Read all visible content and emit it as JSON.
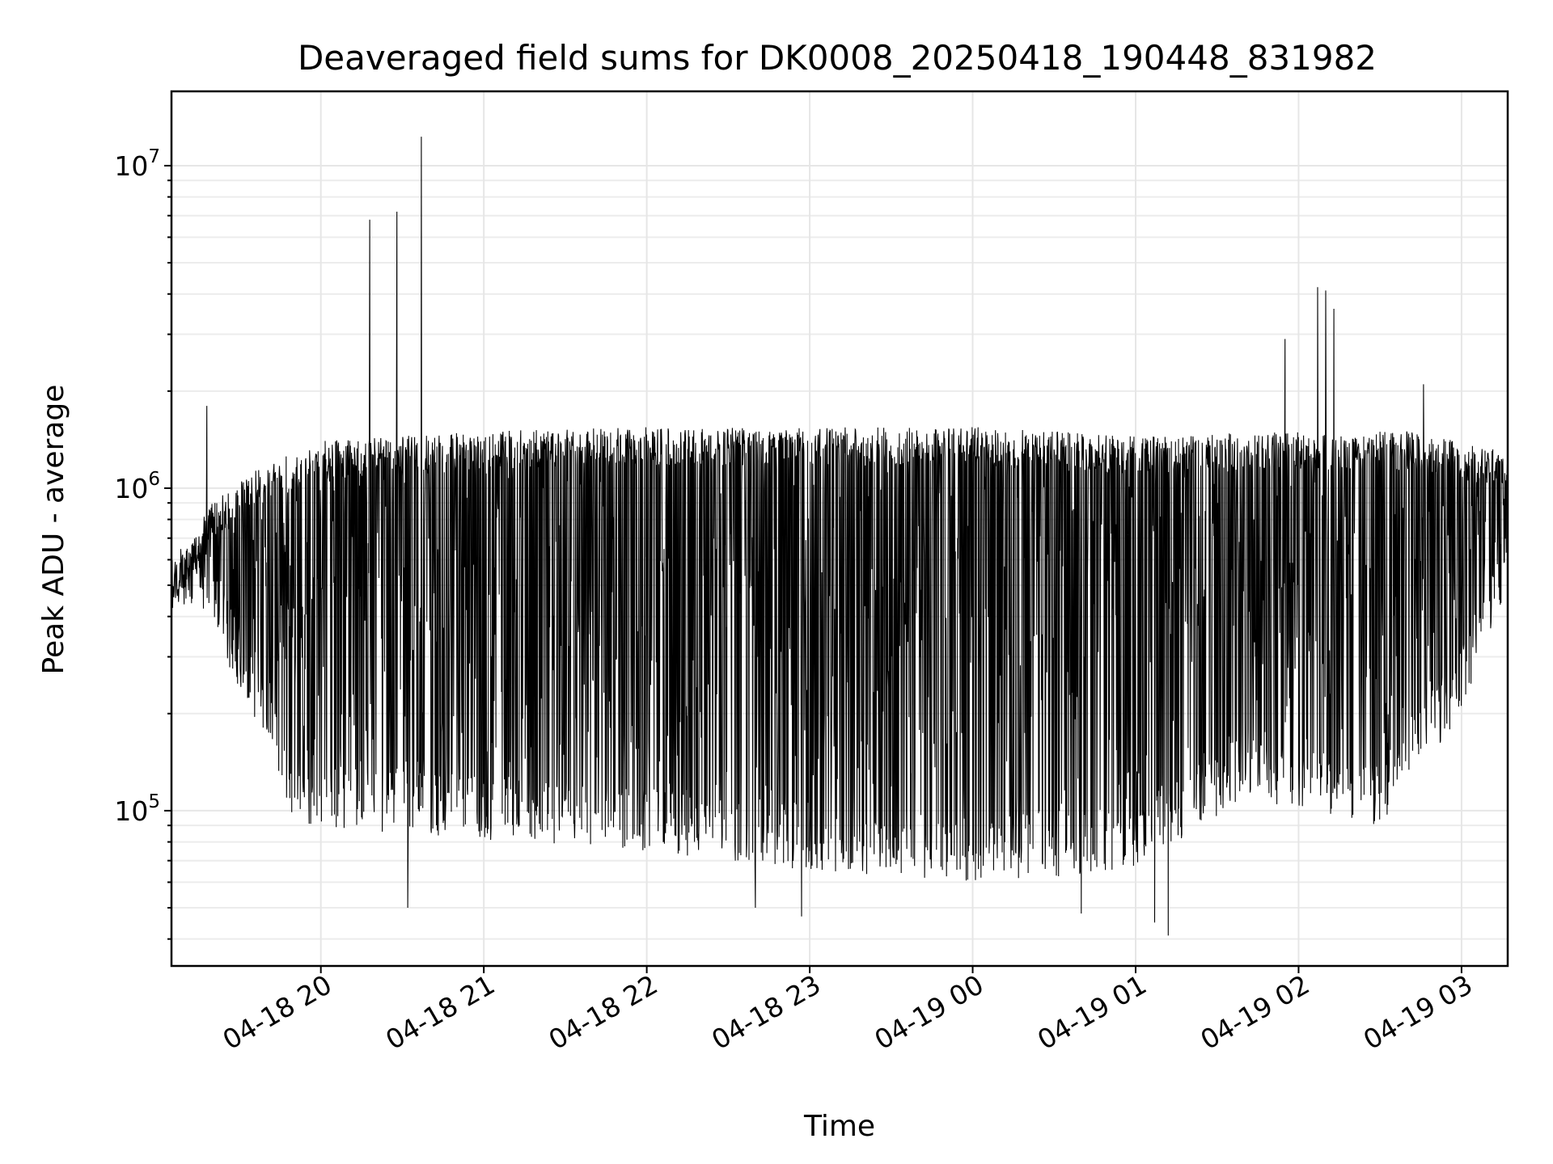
{
  "chart_data": {
    "type": "line",
    "title": "Deaveraged field sums for DK0008_20250418_190448_831982",
    "xlabel": "Time",
    "ylabel": "Peak ADU - average",
    "yscale": "log",
    "xlim": [
      "2025-04-18T19:05:00",
      "2025-04-19T03:17:00"
    ],
    "ylim": [
      33000,
      17000000
    ],
    "grid": true,
    "line_color": "#000000",
    "x_ticks": [
      {
        "value": "2025-04-18T20:00:00",
        "label": "04-18 20"
      },
      {
        "value": "2025-04-18T21:00:00",
        "label": "04-18 21"
      },
      {
        "value": "2025-04-18T22:00:00",
        "label": "04-18 22"
      },
      {
        "value": "2025-04-18T23:00:00",
        "label": "04-18 23"
      },
      {
        "value": "2025-04-19T00:00:00",
        "label": "04-19 00"
      },
      {
        "value": "2025-04-19T01:00:00",
        "label": "04-19 01"
      },
      {
        "value": "2025-04-19T02:00:00",
        "label": "04-19 02"
      },
      {
        "value": "2025-04-19T03:00:00",
        "label": "04-19 03"
      }
    ],
    "y_ticks": [
      {
        "value": 100000,
        "base": "10",
        "exp": "5"
      },
      {
        "value": 1000000,
        "base": "10",
        "exp": "6"
      },
      {
        "value": 10000000,
        "base": "10",
        "exp": "7"
      }
    ],
    "series": [
      {
        "style": "dense oscillating signal between an upper envelope and a lower envelope",
        "upper_envelope": [
          {
            "x": "2025-04-18T19:05:00",
            "y": 550000
          },
          {
            "x": "2025-04-18T19:20:00",
            "y": 900000
          },
          {
            "x": "2025-04-18T19:40:00",
            "y": 1200000
          },
          {
            "x": "2025-04-18T20:00:00",
            "y": 1400000
          },
          {
            "x": "2025-04-18T20:30:00",
            "y": 1450000
          },
          {
            "x": "2025-04-18T21:00:00",
            "y": 1500000
          },
          {
            "x": "2025-04-18T22:00:00",
            "y": 1550000
          },
          {
            "x": "2025-04-18T23:00:00",
            "y": 1550000
          },
          {
            "x": "2025-04-19T00:00:00",
            "y": 1550000
          },
          {
            "x": "2025-04-19T01:00:00",
            "y": 1450000
          },
          {
            "x": "2025-04-19T02:00:00",
            "y": 1500000
          },
          {
            "x": "2025-04-19T02:40:00",
            "y": 1500000
          },
          {
            "x": "2025-04-19T03:17:00",
            "y": 1300000
          }
        ],
        "lower_envelope": [
          {
            "x": "2025-04-18T19:05:00",
            "y": 450000
          },
          {
            "x": "2025-04-18T19:20:00",
            "y": 350000
          },
          {
            "x": "2025-04-18T19:35:00",
            "y": 200000
          },
          {
            "x": "2025-04-18T19:50:00",
            "y": 90000
          },
          {
            "x": "2025-04-18T20:30:00",
            "y": 85000
          },
          {
            "x": "2025-04-18T21:00:00",
            "y": 80000
          },
          {
            "x": "2025-04-18T22:00:00",
            "y": 75000
          },
          {
            "x": "2025-04-18T23:00:00",
            "y": 65000
          },
          {
            "x": "2025-04-19T00:00:00",
            "y": 60000
          },
          {
            "x": "2025-04-19T01:00:00",
            "y": 65000
          },
          {
            "x": "2025-04-19T01:40:00",
            "y": 110000
          },
          {
            "x": "2025-04-19T02:00:00",
            "y": 100000
          },
          {
            "x": "2025-04-19T02:30:00",
            "y": 90000
          },
          {
            "x": "2025-04-19T03:00:00",
            "y": 200000
          },
          {
            "x": "2025-04-19T03:17:00",
            "y": 500000
          }
        ],
        "spikes": [
          {
            "x": "2025-04-18T20:18:00",
            "y": 6800000
          },
          {
            "x": "2025-04-18T20:28:00",
            "y": 7200000
          },
          {
            "x": "2025-04-18T20:37:00",
            "y": 12300000
          },
          {
            "x": "2025-04-19T01:55:00",
            "y": 2900000
          },
          {
            "x": "2025-04-19T02:07:00",
            "y": 4200000
          },
          {
            "x": "2025-04-19T02:10:00",
            "y": 4100000
          },
          {
            "x": "2025-04-19T02:13:00",
            "y": 3600000
          },
          {
            "x": "2025-04-19T02:46:00",
            "y": 2100000
          },
          {
            "x": "2025-04-18T19:18:00",
            "y": 1800000
          }
        ],
        "dips": [
          {
            "x": "2025-04-18T20:32:00",
            "y": 50000
          },
          {
            "x": "2025-04-18T22:57:00",
            "y": 47000
          },
          {
            "x": "2025-04-19T00:40:00",
            "y": 48000
          },
          {
            "x": "2025-04-19T01:12:00",
            "y": 41000
          },
          {
            "x": "2025-04-19T01:07:00",
            "y": 45000
          },
          {
            "x": "2025-04-18T22:40:00",
            "y": 50000
          }
        ]
      }
    ]
  }
}
